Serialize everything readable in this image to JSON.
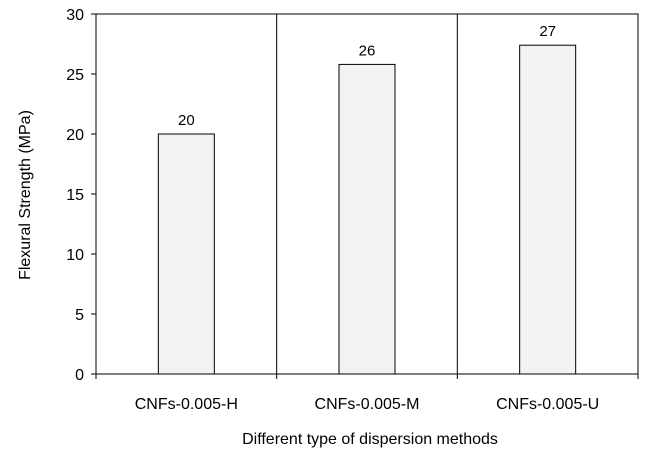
{
  "chart_data": {
    "type": "bar",
    "categories": [
      "CNFs-0.005-H",
      "CNFs-0.005-M",
      "CNFs-0.005-U"
    ],
    "values": [
      20,
      25.8,
      27.4
    ],
    "data_labels": [
      "20",
      "26",
      "27"
    ],
    "xlabel": "Different type of dispersion methods",
    "ylabel": "Flexural Strength (MPa)",
    "ylim": [
      0,
      30
    ],
    "yticks": [
      0,
      5,
      10,
      15,
      20,
      25,
      30
    ],
    "grid": false,
    "legend": "none",
    "colors": {
      "bar_fill": "#f2f2f2",
      "bar_stroke": "#000000",
      "frame": "#000000",
      "separator": "#000000"
    }
  }
}
